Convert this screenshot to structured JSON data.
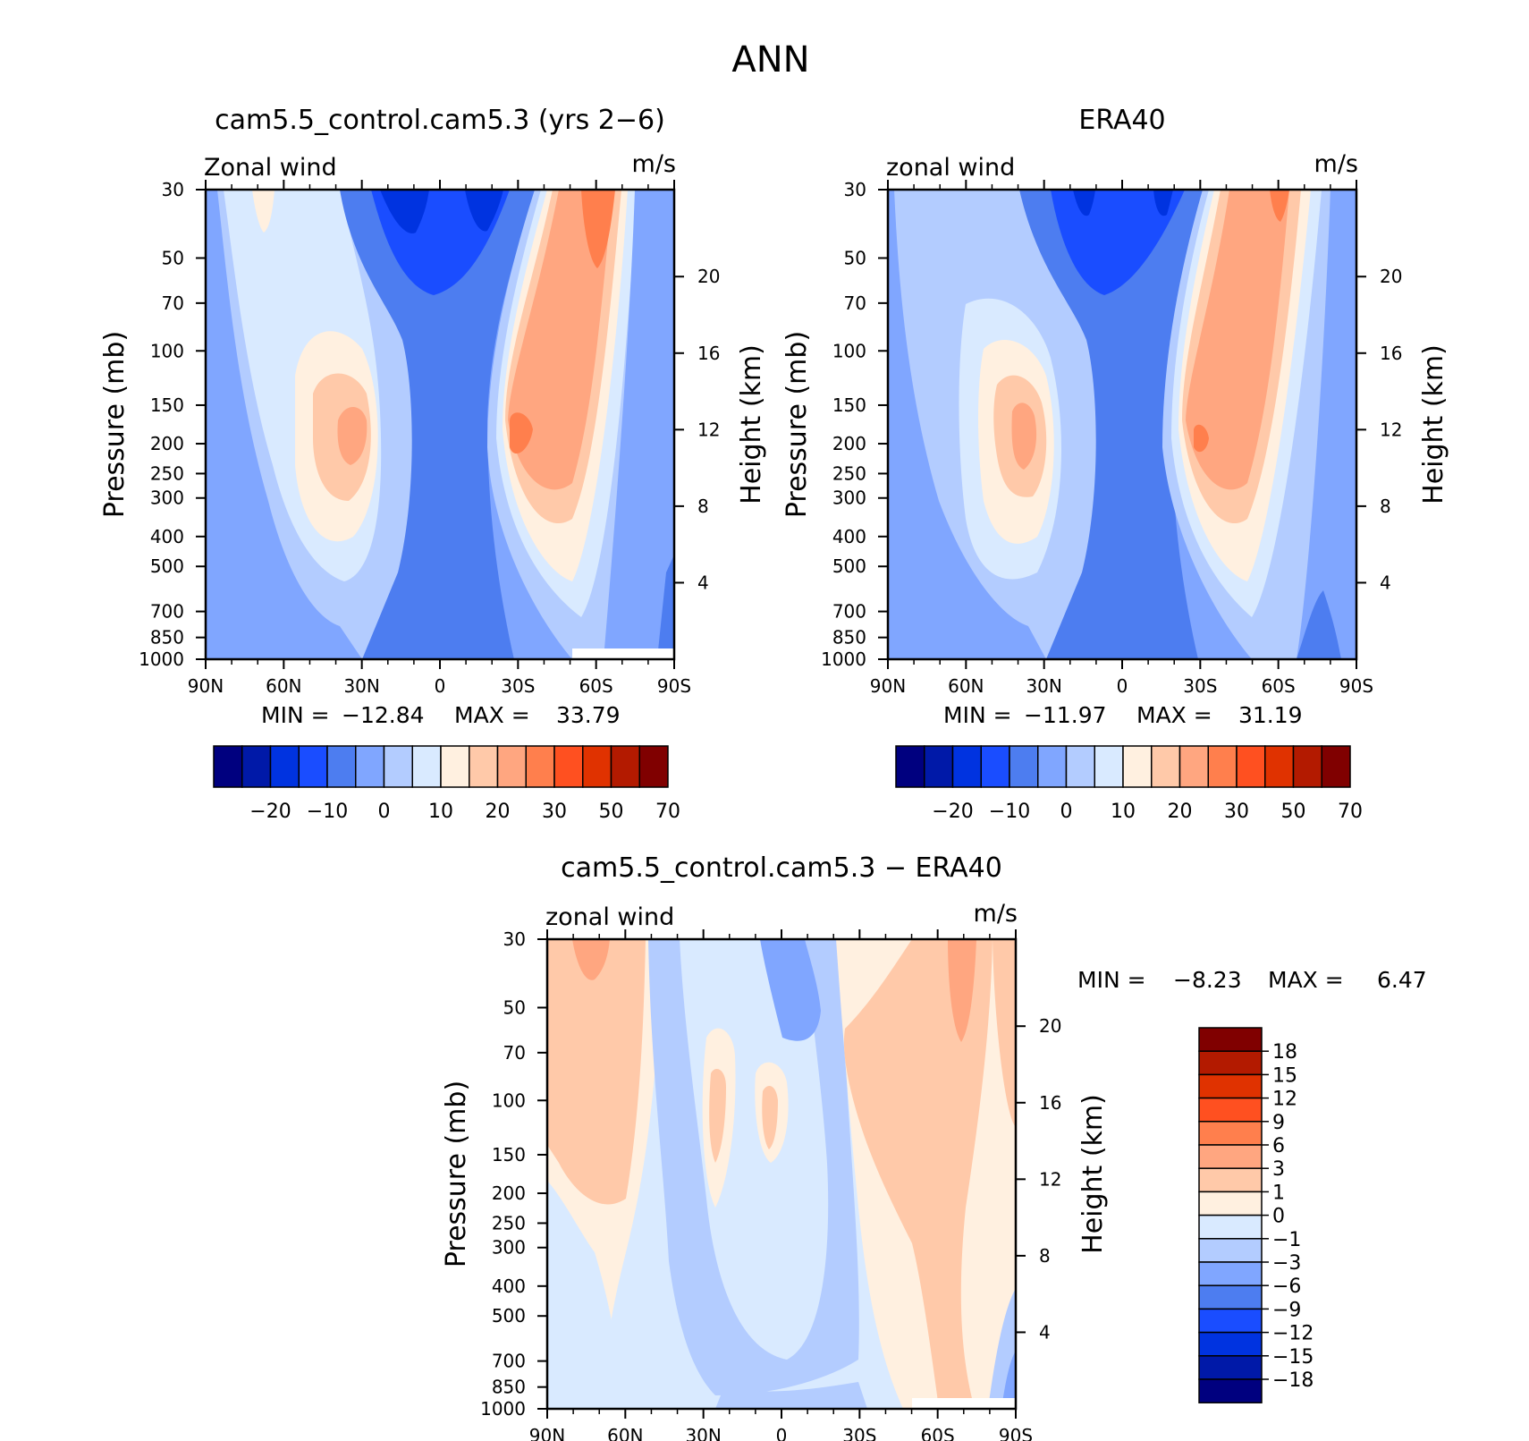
{
  "figure_title": "ANN",
  "colors": {
    "wind_scale": [
      "#00007f",
      "#0019a8",
      "#0033e0",
      "#1a4dff",
      "#4d7df0",
      "#80a6ff",
      "#b3ccff",
      "#d9eaff",
      "#fff0e0",
      "#ffc9a9",
      "#ffa680",
      "#ff7f4d",
      "#ff5020",
      "#e03200",
      "#b31a00",
      "#800000"
    ],
    "diff_scale": [
      "#00007f",
      "#0019a8",
      "#0033e0",
      "#1a4dff",
      "#4d7df0",
      "#80a6ff",
      "#b3ccff",
      "#d9eaff",
      "#fff0e0",
      "#ffc9a9",
      "#ffa680",
      "#ff7f4d",
      "#ff5020",
      "#e03200",
      "#b31a00",
      "#800000"
    ]
  },
  "chart_data": [
    {
      "type": "heatmap",
      "title": "cam5.5_control.cam5.3 (yrs 2−6)",
      "left_label": "Zonal wind",
      "units": "m/s",
      "ylabel": "Pressure (mb)",
      "y2label": "Height (km)",
      "x_ticks": [
        "90N",
        "60N",
        "30N",
        "0",
        "30S",
        "60S",
        "90S"
      ],
      "y_ticks": [
        "30",
        "50",
        "70",
        "100",
        "150",
        "200",
        "250",
        "300",
        "400",
        "500",
        "700",
        "850",
        "1000"
      ],
      "y2_ticks": [
        "20",
        "16",
        "12",
        "8",
        "4"
      ],
      "min_label": "MIN =",
      "min_value": "−12.84",
      "max_label": "MAX =",
      "max_value": "33.79",
      "colorbar_labels": [
        "−20",
        "−10",
        "0",
        "10",
        "20",
        "30",
        "50",
        "70"
      ]
    },
    {
      "type": "heatmap",
      "title": "ERA40",
      "left_label": "zonal wind",
      "units": "m/s",
      "ylabel": "Pressure (mb)",
      "y2label": "Height (km)",
      "x_ticks": [
        "90N",
        "60N",
        "30N",
        "0",
        "30S",
        "60S",
        "90S"
      ],
      "y_ticks": [
        "30",
        "50",
        "70",
        "100",
        "150",
        "200",
        "250",
        "300",
        "400",
        "500",
        "700",
        "850",
        "1000"
      ],
      "y2_ticks": [
        "20",
        "16",
        "12",
        "8",
        "4"
      ],
      "min_label": "MIN =",
      "min_value": "−11.97",
      "max_label": "MAX =",
      "max_value": "31.19",
      "colorbar_labels": [
        "−20",
        "−10",
        "0",
        "10",
        "20",
        "30",
        "50",
        "70"
      ]
    },
    {
      "type": "heatmap",
      "title": "cam5.5_control.cam5.3 − ERA40",
      "left_label": "zonal wind",
      "units": "m/s",
      "ylabel": "Pressure (mb)",
      "y2label": "Height (km)",
      "x_ticks": [
        "90N",
        "60N",
        "30N",
        "0",
        "30S",
        "60S",
        "90S"
      ],
      "y_ticks": [
        "30",
        "50",
        "70",
        "100",
        "150",
        "200",
        "250",
        "300",
        "400",
        "500",
        "700",
        "850",
        "1000"
      ],
      "y2_ticks": [
        "20",
        "16",
        "12",
        "8",
        "4"
      ],
      "min_label": "MIN =",
      "min_value": "−8.23",
      "max_label": "MAX =",
      "max_value": "6.47",
      "colorbar_labels": [
        "18",
        "15",
        "12",
        "9",
        "6",
        "3",
        "1",
        "0",
        "−1",
        "−3",
        "−6",
        "−9",
        "−12",
        "−15",
        "−18"
      ]
    }
  ]
}
